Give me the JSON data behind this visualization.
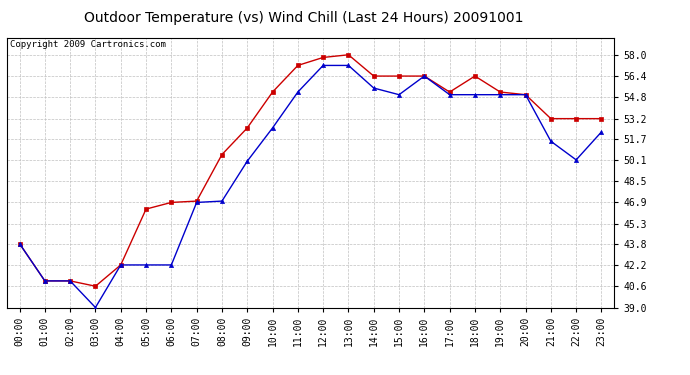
{
  "title": "Outdoor Temperature (vs) Wind Chill (Last 24 Hours) 20091001",
  "copyright": "Copyright 2009 Cartronics.com",
  "hours": [
    "00:00",
    "01:00",
    "02:00",
    "03:00",
    "04:00",
    "05:00",
    "06:00",
    "07:00",
    "08:00",
    "09:00",
    "10:00",
    "11:00",
    "12:00",
    "13:00",
    "14:00",
    "15:00",
    "16:00",
    "17:00",
    "18:00",
    "19:00",
    "20:00",
    "21:00",
    "22:00",
    "23:00"
  ],
  "temp": [
    43.8,
    41.0,
    41.0,
    40.6,
    42.2,
    46.4,
    46.9,
    47.0,
    50.5,
    52.5,
    55.2,
    57.2,
    57.8,
    58.0,
    56.4,
    56.4,
    56.4,
    55.2,
    56.4,
    55.2,
    55.0,
    53.2,
    53.2,
    53.2
  ],
  "windchill": [
    43.8,
    41.0,
    41.0,
    39.0,
    42.2,
    42.2,
    42.2,
    46.9,
    47.0,
    50.0,
    52.5,
    55.2,
    57.2,
    57.2,
    55.5,
    55.0,
    56.4,
    55.0,
    55.0,
    55.0,
    55.0,
    51.5,
    50.1,
    52.2
  ],
  "ylim_min": 39.0,
  "ylim_max": 59.3,
  "yticks": [
    39.0,
    40.6,
    42.2,
    43.8,
    45.3,
    46.9,
    48.5,
    50.1,
    51.7,
    53.2,
    54.8,
    56.4,
    58.0
  ],
  "temp_color": "#cc0000",
  "windchill_color": "#0000cc",
  "bg_color": "#ffffff",
  "grid_color": "#c0c0c0",
  "title_fontsize": 10,
  "copyright_fontsize": 6.5,
  "tick_fontsize": 7,
  "marker_size": 3
}
